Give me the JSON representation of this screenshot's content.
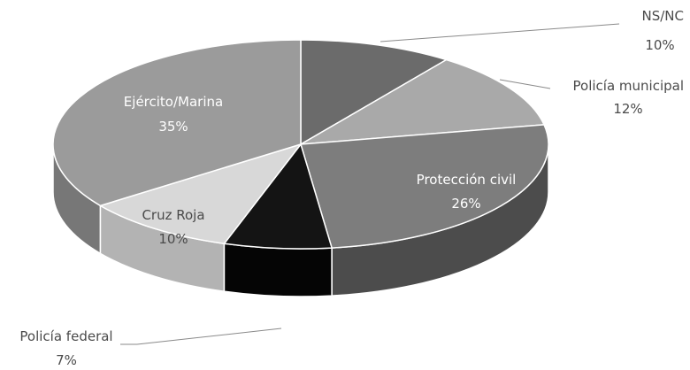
{
  "chart_data": {
    "type": "pie",
    "three_d": true,
    "legend": "none",
    "slices": [
      {
        "name": "NS/NC",
        "value": 10,
        "label": "10%",
        "color": "#6b6b6b",
        "side_color": "#4a4a4a"
      },
      {
        "name": "Policía municipal",
        "value": 12,
        "label": "12%",
        "color": "#a9a9a9",
        "side_color": "#7c7c7c"
      },
      {
        "name": "Protección civil",
        "value": 26,
        "label": "26%",
        "color": "#7d7d7d",
        "side_color": "#4c4c4c"
      },
      {
        "name": "Policía federal",
        "value": 7,
        "label": "7%",
        "color": "#141414",
        "side_color": "#050505"
      },
      {
        "name": "Cruz Roja",
        "value": 10,
        "label": "10%",
        "color": "#d8d8d8",
        "side_color": "#b3b3b3"
      },
      {
        "name": "Ejército/Marina",
        "value": 35,
        "label": "35%",
        "color": "#9b9b9b",
        "side_color": "#777777"
      }
    ]
  }
}
